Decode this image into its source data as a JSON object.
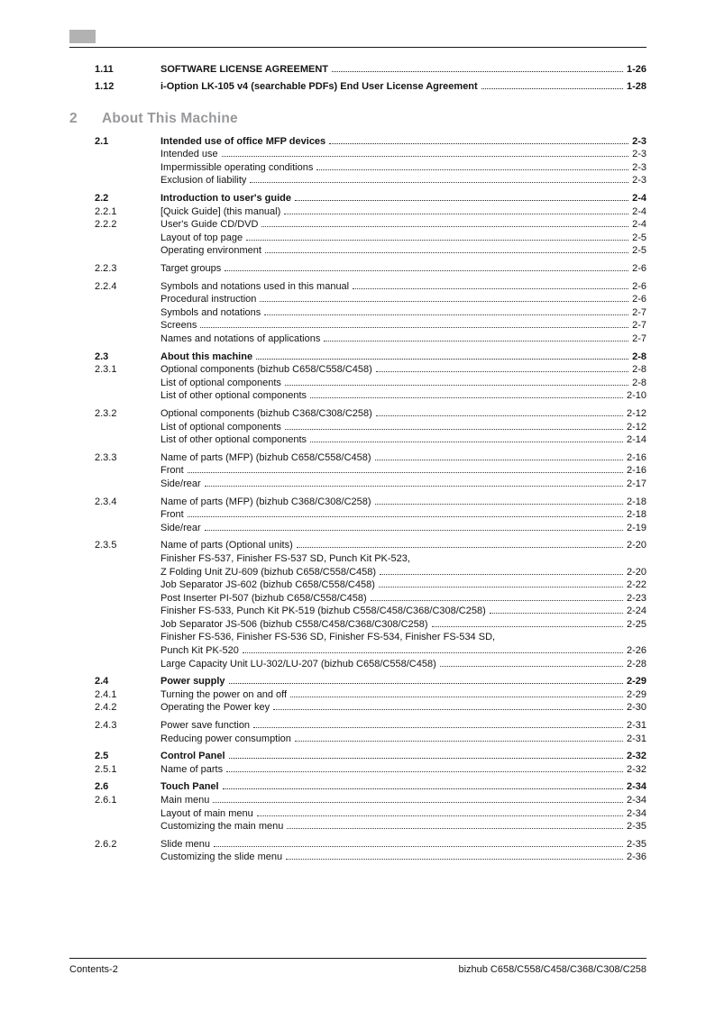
{
  "colors": {
    "tab_marker_gray": "#b2b2b2",
    "chapter_heading_gray": "#97999c",
    "text": "#141414"
  },
  "prelude_entries": [
    {
      "num": "1.11",
      "title": "SOFTWARE LICENSE AGREEMENT",
      "page": "1-26",
      "style": "section"
    },
    {
      "num": "1.12",
      "title": "i-Option LK-105 v4 (searchable PDFs) End User License Agreement",
      "page": "1-28",
      "style": "section"
    }
  ],
  "chapter": {
    "number": "2",
    "title": "About This Machine",
    "entries": [
      {
        "num": "2.1",
        "title": "Intended use of office MFP devices",
        "page": "2-3",
        "style": "section"
      },
      {
        "num": "",
        "title": "Intended use",
        "page": "2-3",
        "style": "item"
      },
      {
        "num": "",
        "title": "Impermissible operating conditions",
        "page": "2-3",
        "style": "item"
      },
      {
        "num": "",
        "title": "Exclusion of liability",
        "page": "2-3",
        "style": "item"
      },
      {
        "num": "2.2",
        "title": "Introduction to user's guide",
        "page": "2-4",
        "style": "section",
        "gap": true
      },
      {
        "num": "2.2.1",
        "title": "[Quick Guide] (this manual)",
        "page": "2-4",
        "style": "sub"
      },
      {
        "num": "2.2.2",
        "title": "User's Guide CD/DVD",
        "page": "2-4",
        "style": "sub"
      },
      {
        "num": "",
        "title": "Layout of top page",
        "page": "2-5",
        "style": "item"
      },
      {
        "num": "",
        "title": "Operating environment",
        "page": "2-5",
        "style": "item"
      },
      {
        "num": "2.2.3",
        "title": "Target groups",
        "page": "2-6",
        "style": "sub",
        "gap": true
      },
      {
        "num": "2.2.4",
        "title": "Symbols and notations used in this manual",
        "page": "2-6",
        "style": "sub",
        "gap": true
      },
      {
        "num": "",
        "title": "Procedural instruction",
        "page": "2-6",
        "style": "item"
      },
      {
        "num": "",
        "title": "Symbols and notations",
        "page": "2-7",
        "style": "item"
      },
      {
        "num": "",
        "title": "Screens",
        "page": "2-7",
        "style": "item"
      },
      {
        "num": "",
        "title": "Names and notations of applications",
        "page": "2-7",
        "style": "item"
      },
      {
        "num": "2.3",
        "title": "About this machine",
        "page": "2-8",
        "style": "section",
        "gap": true
      },
      {
        "num": "2.3.1",
        "title": "Optional components (bizhub C658/C558/C458)",
        "page": "2-8",
        "style": "sub"
      },
      {
        "num": "",
        "title": "List of optional components",
        "page": "2-8",
        "style": "item"
      },
      {
        "num": "",
        "title": "List of other optional components",
        "page": "2-10",
        "style": "item"
      },
      {
        "num": "2.3.2",
        "title": "Optional components (bizhub C368/C308/C258)",
        "page": "2-12",
        "style": "sub",
        "gap": true
      },
      {
        "num": "",
        "title": "List of optional components",
        "page": "2-12",
        "style": "item"
      },
      {
        "num": "",
        "title": "List of other optional components",
        "page": "2-14",
        "style": "item"
      },
      {
        "num": "2.3.3",
        "title": "Name of parts (MFP) (bizhub C658/C558/C458)",
        "page": "2-16",
        "style": "sub",
        "gap": true
      },
      {
        "num": "",
        "title": "Front",
        "page": "2-16",
        "style": "item"
      },
      {
        "num": "",
        "title": "Side/rear",
        "page": "2-17",
        "style": "item"
      },
      {
        "num": "2.3.4",
        "title": "Name of parts (MFP) (bizhub C368/C308/C258)",
        "page": "2-18",
        "style": "sub",
        "gap": true
      },
      {
        "num": "",
        "title": "Front",
        "page": "2-18",
        "style": "item"
      },
      {
        "num": "",
        "title": "Side/rear",
        "page": "2-19",
        "style": "item"
      },
      {
        "num": "2.3.5",
        "title": "Name of parts (Optional units)",
        "page": "2-20",
        "style": "sub",
        "gap": true
      },
      {
        "num": "",
        "title": "Finisher FS-537, Finisher FS-537 SD, Punch Kit PK-523,",
        "page": null,
        "style": "item"
      },
      {
        "num": "",
        "title": "Z Folding Unit ZU-609 (bizhub C658/C558/C458)",
        "page": "2-20",
        "style": "item"
      },
      {
        "num": "",
        "title": "Job Separator JS-602 (bizhub C658/C558/C458)",
        "page": "2-22",
        "style": "item"
      },
      {
        "num": "",
        "title": "Post Inserter PI-507 (bizhub C658/C558/C458)",
        "page": "2-23",
        "style": "item"
      },
      {
        "num": "",
        "title": "Finisher FS-533, Punch Kit PK-519 (bizhub C558/C458/C368/C308/C258)",
        "page": "2-24",
        "style": "item"
      },
      {
        "num": "",
        "title": "Job Separator JS-506 (bizhub C558/C458/C368/C308/C258)",
        "page": "2-25",
        "style": "item"
      },
      {
        "num": "",
        "title": "Finisher FS-536, Finisher FS-536 SD, Finisher FS-534, Finisher FS-534 SD,",
        "page": null,
        "style": "item"
      },
      {
        "num": "",
        "title": "Punch Kit PK-520",
        "page": "2-26",
        "style": "item"
      },
      {
        "num": "",
        "title": "Large Capacity Unit LU-302/LU-207 (bizhub C658/C558/C458)",
        "page": "2-28",
        "style": "item"
      },
      {
        "num": "2.4",
        "title": "Power supply",
        "page": "2-29",
        "style": "section",
        "gap": true
      },
      {
        "num": "2.4.1",
        "title": "Turning the power on and off",
        "page": "2-29",
        "style": "sub"
      },
      {
        "num": "2.4.2",
        "title": "Operating the Power key",
        "page": "2-30",
        "style": "sub"
      },
      {
        "num": "2.4.3",
        "title": "Power save function",
        "page": "2-31",
        "style": "sub",
        "gap": true
      },
      {
        "num": "",
        "title": "Reducing power consumption",
        "page": "2-31",
        "style": "item"
      },
      {
        "num": "2.5",
        "title": "Control Panel",
        "page": "2-32",
        "style": "section",
        "gap": true
      },
      {
        "num": "2.5.1",
        "title": "Name of parts",
        "page": "2-32",
        "style": "sub"
      },
      {
        "num": "2.6",
        "title": "Touch Panel",
        "page": "2-34",
        "style": "section",
        "gap": true
      },
      {
        "num": "2.6.1",
        "title": "Main menu",
        "page": "2-34",
        "style": "sub"
      },
      {
        "num": "",
        "title": "Layout of main menu",
        "page": "2-34",
        "style": "item"
      },
      {
        "num": "",
        "title": "Customizing the main menu",
        "page": "2-35",
        "style": "item"
      },
      {
        "num": "2.6.2",
        "title": "Slide menu",
        "page": "2-35",
        "style": "sub",
        "gap": true
      },
      {
        "num": "",
        "title": "Customizing the slide menu",
        "page": "2-36",
        "style": "item"
      }
    ]
  },
  "footer": {
    "left": "Contents-2",
    "right": "bizhub C658/C558/C458/C368/C308/C258"
  }
}
